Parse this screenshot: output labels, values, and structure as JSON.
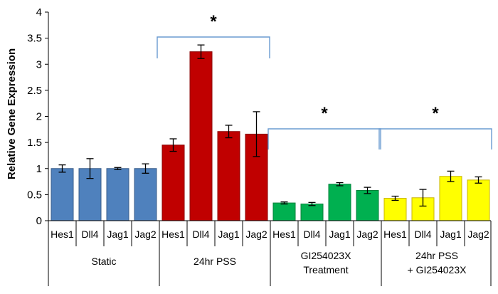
{
  "chart_data": {
    "type": "bar",
    "title": "",
    "xlabel": "",
    "ylabel": "Relative Gene Expression",
    "ylim": [
      0,
      4
    ],
    "yticks": [
      "0",
      "0.5",
      "1",
      "1.5",
      "2",
      "2.5",
      "3",
      "3.5",
      "4"
    ],
    "grid": false,
    "legend": "none",
    "groups": [
      {
        "label_lines": [
          "Static"
        ],
        "color": "#4F81BD",
        "edge_color": "#385D8A",
        "bars": [
          {
            "category": "Hes1",
            "value": 1.0,
            "error": 0.07
          },
          {
            "category": "Dll4",
            "value": 1.0,
            "error": 0.19
          },
          {
            "category": "Jag1",
            "value": 1.0,
            "error": 0.02
          },
          {
            "category": "Jag2",
            "value": 1.0,
            "error": 0.09
          }
        ]
      },
      {
        "label_lines": [
          "24hr PSS"
        ],
        "color": "#C00000",
        "edge_color": "#8B0000",
        "bars": [
          {
            "category": "Hes1",
            "value": 1.45,
            "error": 0.12
          },
          {
            "category": "Dll4",
            "value": 3.24,
            "error": 0.13
          },
          {
            "category": "Jag1",
            "value": 1.71,
            "error": 0.12
          },
          {
            "category": "Jag2",
            "value": 1.66,
            "error": 0.43
          }
        ]
      },
      {
        "label_lines": [
          "GI254023X",
          "Treatment"
        ],
        "color": "#00B050",
        "edge_color": "#00803A",
        "bars": [
          {
            "category": "Hes1",
            "value": 0.34,
            "error": 0.02
          },
          {
            "category": "Dll4",
            "value": 0.32,
            "error": 0.03
          },
          {
            "category": "Jag1",
            "value": 0.7,
            "error": 0.03
          },
          {
            "category": "Jag2",
            "value": 0.58,
            "error": 0.06
          }
        ]
      },
      {
        "label_lines": [
          "24hr PSS",
          "+ GI254023X"
        ],
        "color": "#FFFF00",
        "edge_color": "#C9B400",
        "bars": [
          {
            "category": "Hes1",
            "value": 0.43,
            "error": 0.04
          },
          {
            "category": "Dll4",
            "value": 0.44,
            "error": 0.16
          },
          {
            "category": "Jag1",
            "value": 0.85,
            "error": 0.1
          },
          {
            "category": "Jag2",
            "value": 0.78,
            "error": 0.06
          }
        ]
      }
    ],
    "annotations": [
      {
        "label": "*",
        "spans_groups": [
          1,
          1
        ]
      },
      {
        "label": "*",
        "spans_groups": [
          2,
          2
        ]
      },
      {
        "label": "*",
        "spans_groups": [
          3,
          3
        ]
      }
    ],
    "bracket_color": "#6A9BD1"
  }
}
